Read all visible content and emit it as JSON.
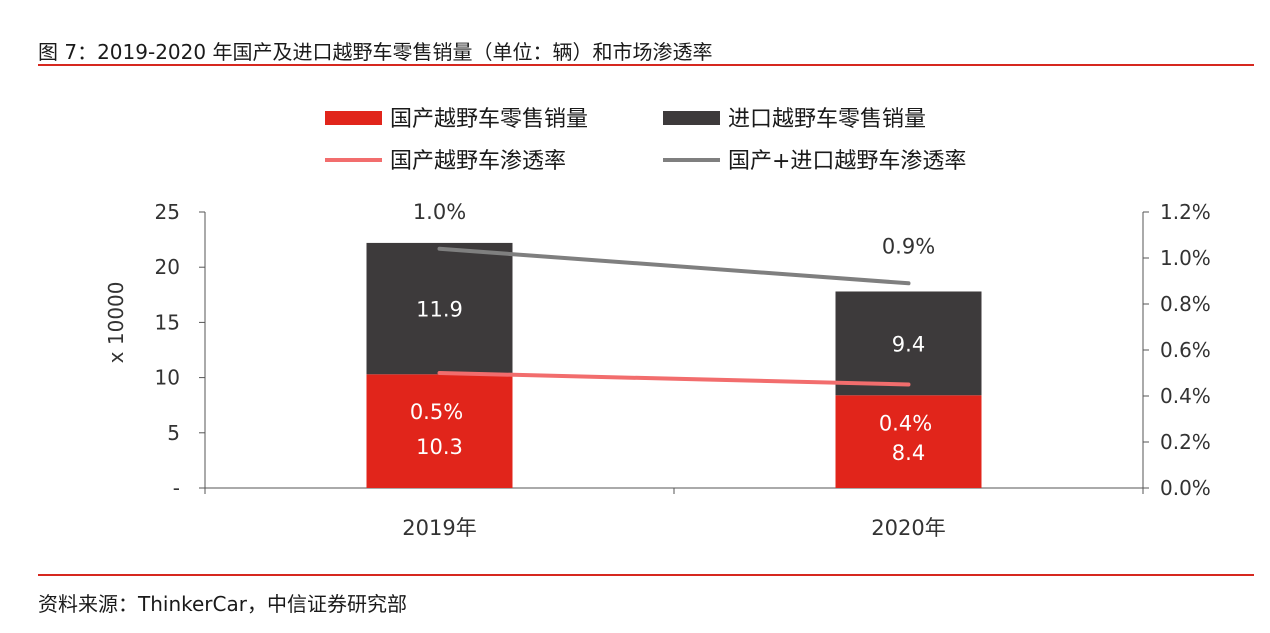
{
  "figure_title": "图 7：2019-2020 年国产及进口越野车零售销量（单位：辆）和市场渗透率",
  "source_text": "资料来源：ThinkerCar，中信证券研究部",
  "colors": {
    "domestic_bar": "#e1251b",
    "import_bar": "#3d3a3b",
    "domestic_line": "#f26d6d",
    "total_line": "#7f7f7f",
    "rule": "#d6281f"
  },
  "chart_data": {
    "type": "bar",
    "stacked": true,
    "categories": [
      "2019年",
      "2020年"
    ],
    "series": [
      {
        "name": "国产越野车零售销量",
        "type": "bar",
        "axis": "left",
        "values": [
          10.3,
          8.4
        ],
        "labels": [
          "10.3",
          "8.4"
        ]
      },
      {
        "name": "进口越野车零售销量",
        "type": "bar",
        "axis": "left",
        "values": [
          11.9,
          9.4
        ],
        "labels": [
          "11.9",
          "9.4"
        ]
      },
      {
        "name": "国产越野车渗透率",
        "type": "line",
        "axis": "right",
        "values": [
          0.5,
          0.45
        ],
        "labels": [
          "0.5%",
          "0.4%"
        ]
      },
      {
        "name": "国产+进口越野车渗透率",
        "type": "line",
        "axis": "right",
        "values": [
          1.04,
          0.89
        ],
        "labels": [
          "1.0%",
          "0.9%"
        ]
      }
    ],
    "ylabel": "x 10000",
    "ylim": [
      0,
      25
    ],
    "y_ticks": [
      "-",
      "5",
      "10",
      "15",
      "20",
      "25"
    ],
    "y2lim": [
      0,
      1.2
    ],
    "y2_ticks": [
      "0.0%",
      "0.2%",
      "0.4%",
      "0.6%",
      "0.8%",
      "1.0%",
      "1.2%"
    ],
    "legend": "top",
    "grid": false
  }
}
